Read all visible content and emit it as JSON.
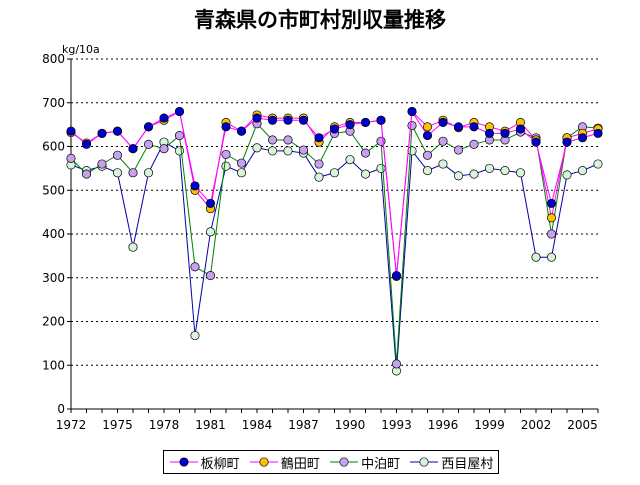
{
  "chart_data": {
    "type": "line",
    "title": "青森県の市町村別収量推移",
    "ylabel": "kg/10a",
    "xlabel": "",
    "ylim": [
      0,
      800
    ],
    "xlim": [
      1972,
      2006
    ],
    "yticks": [
      0,
      100,
      200,
      300,
      400,
      500,
      600,
      700,
      800
    ],
    "xticks": [
      1972,
      1975,
      1978,
      1981,
      1984,
      1987,
      1990,
      1993,
      1996,
      1999,
      2002,
      2005
    ],
    "grid": "horizontal-dotted",
    "legend_position": "bottom",
    "x": [
      1972,
      1973,
      1974,
      1975,
      1976,
      1977,
      1978,
      1979,
      1980,
      1981,
      1982,
      1983,
      1984,
      1985,
      1986,
      1987,
      1988,
      1989,
      1990,
      1991,
      1992,
      1993,
      1994,
      1995,
      1996,
      1997,
      1998,
      1999,
      2000,
      2001,
      2002,
      2003,
      2004,
      2005,
      2006
    ],
    "series": [
      {
        "name": "板柳町",
        "line_color": "#ff00ff",
        "marker_color": "#0000cc",
        "values": [
          635,
          605,
          630,
          635,
          595,
          645,
          665,
          680,
          510,
          470,
          645,
          635,
          665,
          660,
          660,
          660,
          620,
          640,
          650,
          655,
          660,
          305,
          680,
          625,
          655,
          645,
          645,
          630,
          630,
          640,
          610,
          470,
          610,
          620,
          630
        ]
      },
      {
        "name": "鶴田町",
        "line_color": "#ff00ff",
        "marker_color": "#ffc000",
        "values": [
          632,
          608,
          630,
          635,
          595,
          645,
          660,
          680,
          500,
          458,
          655,
          635,
          672,
          665,
          665,
          665,
          610,
          645,
          655,
          655,
          660,
          303,
          680,
          645,
          660,
          643,
          655,
          645,
          635,
          655,
          615,
          437,
          620,
          630,
          640
        ]
      },
      {
        "name": "中泊町",
        "line_color": "#008000",
        "marker_color": "#c8a0f0",
        "values": [
          573,
          537,
          560,
          580,
          540,
          605,
          595,
          625,
          325,
          305,
          582,
          562,
          652,
          615,
          615,
          592,
          560,
          630,
          635,
          585,
          612,
          103,
          648,
          580,
          612,
          592,
          605,
          615,
          615,
          633,
          620,
          400,
          620,
          645,
          642
        ]
      },
      {
        "name": "西目屋村",
        "line_color": "#0000aa",
        "marker_color": "#d8f5dc",
        "values": [
          558,
          545,
          555,
          540,
          370,
          540,
          610,
          590,
          168,
          405,
          555,
          540,
          597,
          590,
          590,
          585,
          530,
          540,
          570,
          537,
          550,
          87,
          590,
          545,
          560,
          533,
          537,
          550,
          545,
          540,
          347,
          347,
          535,
          545,
          560
        ]
      }
    ]
  }
}
